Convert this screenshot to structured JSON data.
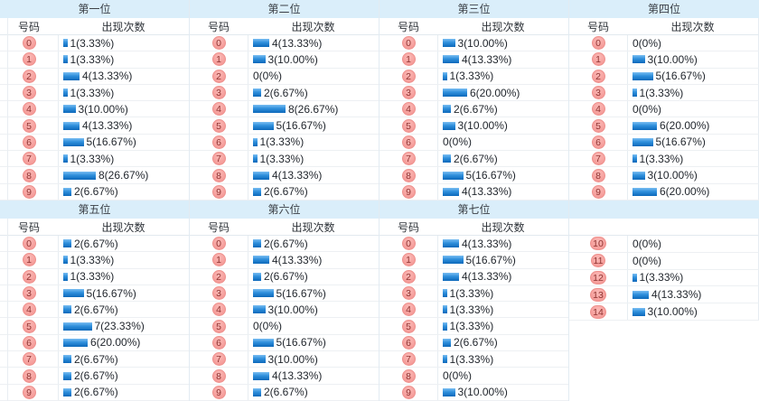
{
  "table": {
    "col_number_header": "号码",
    "col_count_header": "出现次数",
    "groups": [
      {
        "title": "第一位",
        "rows": [
          {
            "num": "0",
            "count": 1,
            "label": "1(3.33%)"
          },
          {
            "num": "1",
            "count": 1,
            "label": "1(3.33%)"
          },
          {
            "num": "2",
            "count": 4,
            "label": "4(13.33%)"
          },
          {
            "num": "3",
            "count": 1,
            "label": "1(3.33%)"
          },
          {
            "num": "4",
            "count": 3,
            "label": "3(10.00%)"
          },
          {
            "num": "5",
            "count": 4,
            "label": "4(13.33%)"
          },
          {
            "num": "6",
            "count": 5,
            "label": "5(16.67%)"
          },
          {
            "num": "7",
            "count": 1,
            "label": "1(3.33%)"
          },
          {
            "num": "8",
            "count": 8,
            "label": "8(26.67%)"
          },
          {
            "num": "9",
            "count": 2,
            "label": "2(6.67%)"
          }
        ]
      },
      {
        "title": "第二位",
        "rows": [
          {
            "num": "0",
            "count": 4,
            "label": "4(13.33%)"
          },
          {
            "num": "1",
            "count": 3,
            "label": "3(10.00%)"
          },
          {
            "num": "2",
            "count": 0,
            "label": "0(0%)"
          },
          {
            "num": "3",
            "count": 2,
            "label": "2(6.67%)"
          },
          {
            "num": "4",
            "count": 8,
            "label": "8(26.67%)"
          },
          {
            "num": "5",
            "count": 5,
            "label": "5(16.67%)"
          },
          {
            "num": "6",
            "count": 1,
            "label": "1(3.33%)"
          },
          {
            "num": "7",
            "count": 1,
            "label": "1(3.33%)"
          },
          {
            "num": "8",
            "count": 4,
            "label": "4(13.33%)"
          },
          {
            "num": "9",
            "count": 2,
            "label": "2(6.67%)"
          }
        ]
      },
      {
        "title": "第三位",
        "rows": [
          {
            "num": "0",
            "count": 3,
            "label": "3(10.00%)"
          },
          {
            "num": "1",
            "count": 4,
            "label": "4(13.33%)"
          },
          {
            "num": "2",
            "count": 1,
            "label": "1(3.33%)"
          },
          {
            "num": "3",
            "count": 6,
            "label": "6(20.00%)"
          },
          {
            "num": "4",
            "count": 2,
            "label": "2(6.67%)"
          },
          {
            "num": "5",
            "count": 3,
            "label": "3(10.00%)"
          },
          {
            "num": "6",
            "count": 0,
            "label": "0(0%)"
          },
          {
            "num": "7",
            "count": 2,
            "label": "2(6.67%)"
          },
          {
            "num": "8",
            "count": 5,
            "label": "5(16.67%)"
          },
          {
            "num": "9",
            "count": 4,
            "label": "4(13.33%)"
          }
        ]
      },
      {
        "title": "第四位",
        "rows": [
          {
            "num": "0",
            "count": 0,
            "label": "0(0%)"
          },
          {
            "num": "1",
            "count": 3,
            "label": "3(10.00%)"
          },
          {
            "num": "2",
            "count": 5,
            "label": "5(16.67%)"
          },
          {
            "num": "3",
            "count": 1,
            "label": "1(3.33%)"
          },
          {
            "num": "4",
            "count": 0,
            "label": "0(0%)"
          },
          {
            "num": "5",
            "count": 6,
            "label": "6(20.00%)"
          },
          {
            "num": "6",
            "count": 5,
            "label": "5(16.67%)"
          },
          {
            "num": "7",
            "count": 1,
            "label": "1(3.33%)"
          },
          {
            "num": "8",
            "count": 3,
            "label": "3(10.00%)"
          },
          {
            "num": "9",
            "count": 6,
            "label": "6(20.00%)"
          }
        ]
      },
      {
        "title": "第五位",
        "rows": [
          {
            "num": "0",
            "count": 2,
            "label": "2(6.67%)"
          },
          {
            "num": "1",
            "count": 1,
            "label": "1(3.33%)"
          },
          {
            "num": "2",
            "count": 1,
            "label": "1(3.33%)"
          },
          {
            "num": "3",
            "count": 5,
            "label": "5(16.67%)"
          },
          {
            "num": "4",
            "count": 2,
            "label": "2(6.67%)"
          },
          {
            "num": "5",
            "count": 7,
            "label": "7(23.33%)"
          },
          {
            "num": "6",
            "count": 6,
            "label": "6(20.00%)"
          },
          {
            "num": "7",
            "count": 2,
            "label": "2(6.67%)"
          },
          {
            "num": "8",
            "count": 2,
            "label": "2(6.67%)"
          },
          {
            "num": "9",
            "count": 2,
            "label": "2(6.67%)"
          }
        ]
      },
      {
        "title": "第六位",
        "rows": [
          {
            "num": "0",
            "count": 2,
            "label": "2(6.67%)"
          },
          {
            "num": "1",
            "count": 4,
            "label": "4(13.33%)"
          },
          {
            "num": "2",
            "count": 2,
            "label": "2(6.67%)"
          },
          {
            "num": "3",
            "count": 5,
            "label": "5(16.67%)"
          },
          {
            "num": "4",
            "count": 3,
            "label": "3(10.00%)"
          },
          {
            "num": "5",
            "count": 0,
            "label": "0(0%)"
          },
          {
            "num": "6",
            "count": 5,
            "label": "5(16.67%)"
          },
          {
            "num": "7",
            "count": 3,
            "label": "3(10.00%)"
          },
          {
            "num": "8",
            "count": 4,
            "label": "4(13.33%)"
          },
          {
            "num": "9",
            "count": 2,
            "label": "2(6.67%)"
          }
        ]
      },
      {
        "title": "第七位",
        "rows": [
          {
            "num": "0",
            "count": 4,
            "label": "4(13.33%)"
          },
          {
            "num": "1",
            "count": 5,
            "label": "5(16.67%)"
          },
          {
            "num": "2",
            "count": 4,
            "label": "4(13.33%)"
          },
          {
            "num": "3",
            "count": 1,
            "label": "1(3.33%)"
          },
          {
            "num": "4",
            "count": 1,
            "label": "1(3.33%)"
          },
          {
            "num": "5",
            "count": 1,
            "label": "1(3.33%)"
          },
          {
            "num": "6",
            "count": 2,
            "label": "2(6.67%)"
          },
          {
            "num": "7",
            "count": 1,
            "label": "1(3.33%)"
          },
          {
            "num": "8",
            "count": 0,
            "label": "0(0%)"
          },
          {
            "num": "9",
            "count": 3,
            "label": "3(10.00%)"
          }
        ]
      },
      {
        "title": "",
        "rows": [
          {
            "num": "10",
            "count": 0,
            "label": "0(0%)"
          },
          {
            "num": "11",
            "count": 0,
            "label": "0(0%)"
          },
          {
            "num": "12",
            "count": 1,
            "label": "1(3.33%)"
          },
          {
            "num": "13",
            "count": 4,
            "label": "4(13.33%)"
          },
          {
            "num": "14",
            "count": 3,
            "label": "3(10.00%)"
          }
        ]
      }
    ]
  },
  "chart_data": [
    {
      "type": "bar",
      "title": "第一位",
      "xlabel": "号码",
      "ylabel": "出现次数",
      "categories": [
        "0",
        "1",
        "2",
        "3",
        "4",
        "5",
        "6",
        "7",
        "8",
        "9"
      ],
      "values": [
        1,
        1,
        4,
        1,
        3,
        4,
        5,
        1,
        8,
        2
      ]
    },
    {
      "type": "bar",
      "title": "第二位",
      "xlabel": "号码",
      "ylabel": "出现次数",
      "categories": [
        "0",
        "1",
        "2",
        "3",
        "4",
        "5",
        "6",
        "7",
        "8",
        "9"
      ],
      "values": [
        4,
        3,
        0,
        2,
        8,
        5,
        1,
        1,
        4,
        2
      ]
    },
    {
      "type": "bar",
      "title": "第三位",
      "xlabel": "号码",
      "ylabel": "出现次数",
      "categories": [
        "0",
        "1",
        "2",
        "3",
        "4",
        "5",
        "6",
        "7",
        "8",
        "9"
      ],
      "values": [
        3,
        4,
        1,
        6,
        2,
        3,
        0,
        2,
        5,
        4
      ]
    },
    {
      "type": "bar",
      "title": "第四位",
      "xlabel": "号码",
      "ylabel": "出现次数",
      "categories": [
        "0",
        "1",
        "2",
        "3",
        "4",
        "5",
        "6",
        "7",
        "8",
        "9"
      ],
      "values": [
        0,
        3,
        5,
        1,
        0,
        6,
        5,
        1,
        3,
        6
      ]
    },
    {
      "type": "bar",
      "title": "第五位",
      "xlabel": "号码",
      "ylabel": "出现次数",
      "categories": [
        "0",
        "1",
        "2",
        "3",
        "4",
        "5",
        "6",
        "7",
        "8",
        "9"
      ],
      "values": [
        2,
        1,
        1,
        5,
        2,
        7,
        6,
        2,
        2,
        2
      ]
    },
    {
      "type": "bar",
      "title": "第六位",
      "xlabel": "号码",
      "ylabel": "出现次数",
      "categories": [
        "0",
        "1",
        "2",
        "3",
        "4",
        "5",
        "6",
        "7",
        "8",
        "9"
      ],
      "values": [
        2,
        4,
        2,
        5,
        3,
        0,
        5,
        3,
        4,
        2
      ]
    },
    {
      "type": "bar",
      "title": "第七位",
      "xlabel": "号码",
      "ylabel": "出现次数",
      "categories": [
        "0",
        "1",
        "2",
        "3",
        "4",
        "5",
        "6",
        "7",
        "8",
        "9",
        "10",
        "11",
        "12",
        "13",
        "14"
      ],
      "values": [
        4,
        5,
        4,
        1,
        1,
        1,
        2,
        1,
        0,
        3,
        0,
        0,
        1,
        4,
        3
      ]
    }
  ],
  "colors": {
    "header_bg": "#daeefa",
    "badge_bg": "#f6a19e",
    "badge_border": "#ee908d",
    "badge_text": "#8f3432",
    "bar_blue": "#0c68ba",
    "row_line": "#edf0f3",
    "label_text": "#1f242b"
  }
}
